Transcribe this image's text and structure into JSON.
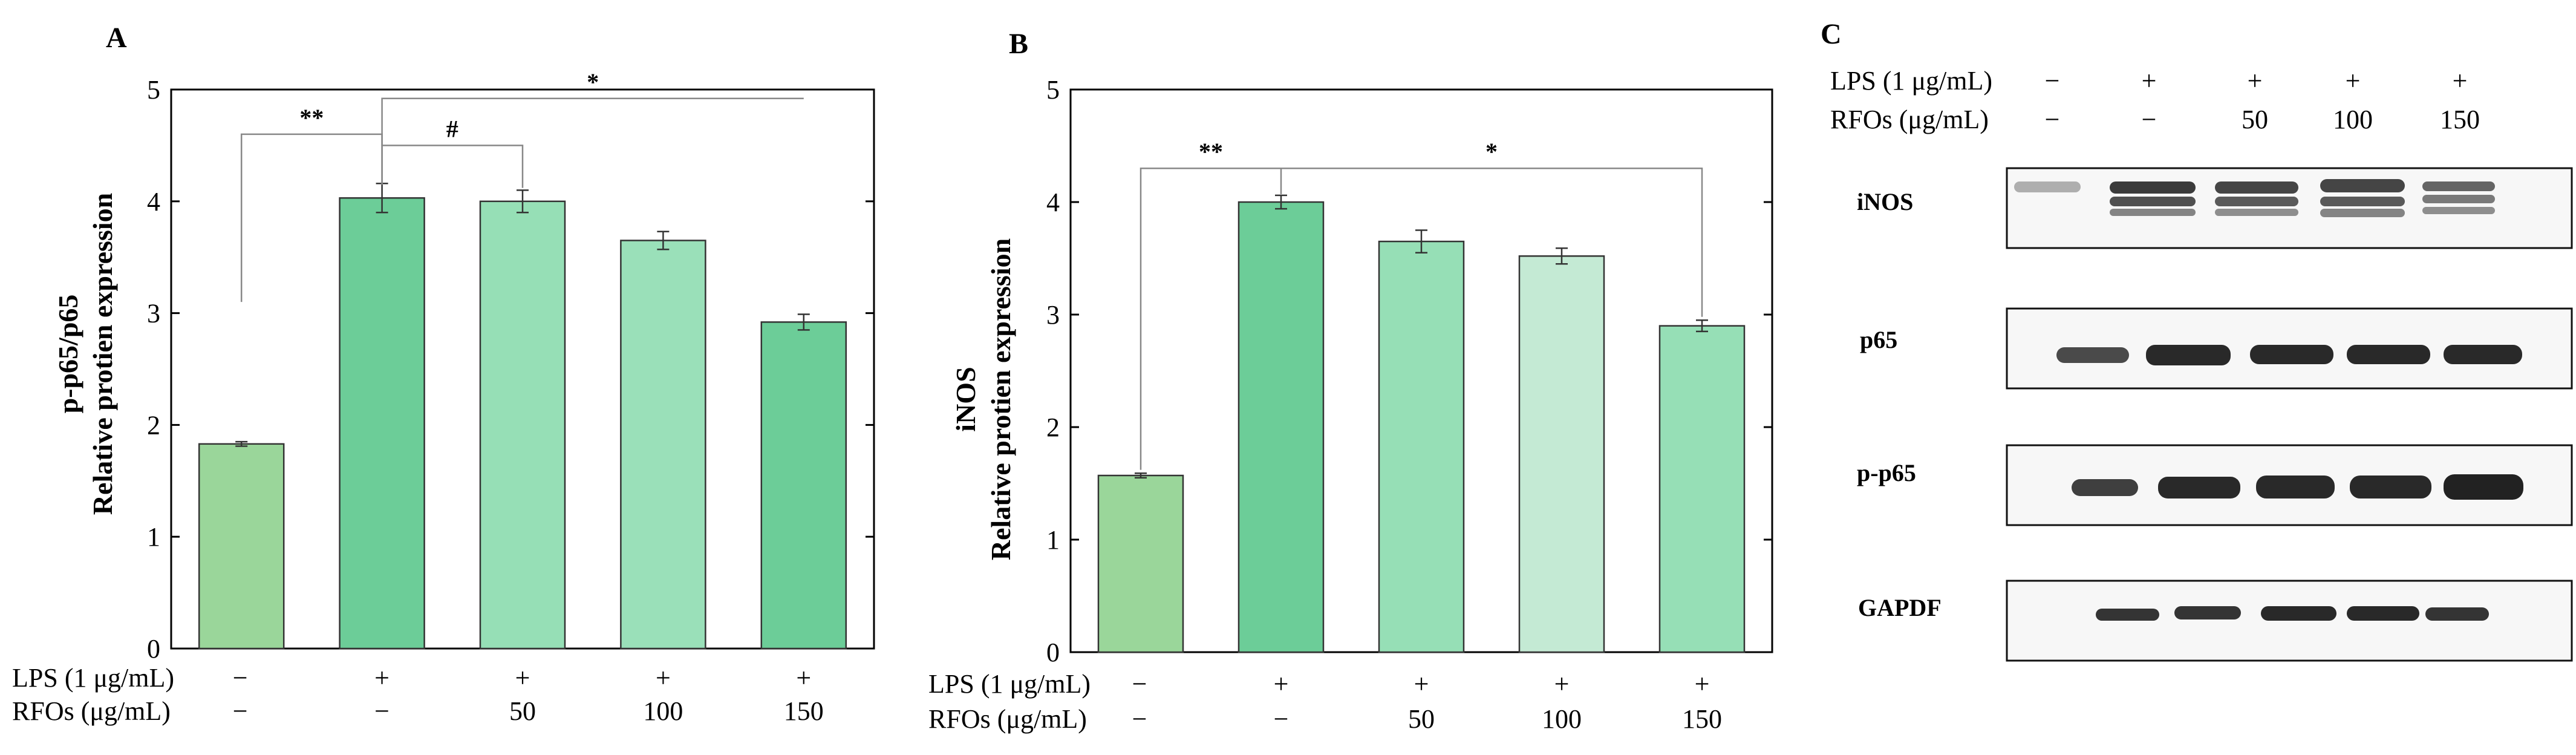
{
  "panels": [
    {
      "letter": "A",
      "chart_data": {
        "type": "bar",
        "title": "",
        "ylabel_line1": "p-p65/p65",
        "ylabel_line2": "Relative protien expression",
        "xlabel": "",
        "ylim": [
          0,
          5
        ],
        "yticks": [
          "0",
          "1",
          "2",
          "3",
          "4",
          "5"
        ],
        "treatment_rows": [
          {
            "label": "LPS (1 μg/mL)",
            "values": [
              "−",
              "+",
              "+",
              "+",
              "+"
            ]
          },
          {
            "label": "RFOs (μg/mL)",
            "values": [
              "−",
              "−",
              "50",
              "100",
              "150"
            ]
          }
        ],
        "values": [
          1.83,
          4.03,
          4.0,
          3.65,
          2.92
        ],
        "errors": [
          0.02,
          0.13,
          0.1,
          0.08,
          0.07
        ],
        "colors": [
          "#9ad69a",
          "#6ccd98",
          "#96dfb6",
          "#9ae0b9",
          "#6ccd98"
        ],
        "significance": [
          {
            "from": 0,
            "to": 1,
            "label": "**",
            "level": 4.6,
            "from_y": 3.1,
            "to_y": 4.15
          },
          {
            "from": 1,
            "to": 2,
            "label": "#",
            "level": 4.5,
            "from_y": 4.15,
            "to_y": 4.12
          },
          {
            "from": 1,
            "to": 4,
            "label": "*",
            "level": 4.92,
            "from_y": 4.5,
            "to_y": 4.92
          }
        ]
      }
    },
    {
      "letter": "B",
      "chart_data": {
        "type": "bar",
        "title": "",
        "ylabel_line1": "iNOS",
        "ylabel_line2": "Relative protien expression",
        "xlabel": "",
        "ylim": [
          0,
          5
        ],
        "yticks": [
          "0",
          "1",
          "2",
          "3",
          "4",
          "5"
        ],
        "treatment_rows": [
          {
            "label": "LPS (1 μg/mL)",
            "values": [
              "−",
              "+",
              "+",
              "+",
              "+"
            ]
          },
          {
            "label": "RFOs (μg/mL)",
            "values": [
              "−",
              "−",
              "50",
              "100",
              "150"
            ]
          }
        ],
        "values": [
          1.57,
          4.0,
          3.65,
          3.52,
          2.9
        ],
        "errors": [
          0.02,
          0.06,
          0.1,
          0.07,
          0.05
        ],
        "colors": [
          "#9ad69a",
          "#6ccd98",
          "#96dfb6",
          "#c4ead4",
          "#96dfb6"
        ],
        "significance": [
          {
            "from": 0,
            "to": 1,
            "label": "**",
            "level": 4.3,
            "from_y": 1.62,
            "to_y": 4.07
          },
          {
            "from": 1,
            "to": 4,
            "label": "*",
            "level": 4.3,
            "from_y": 4.3,
            "to_y": 2.98
          }
        ]
      }
    }
  ],
  "western_blot": {
    "letter": "C",
    "treatment_rows": [
      {
        "label": "LPS (1 μg/mL)",
        "values": [
          "−",
          "+",
          "+",
          "+",
          "+"
        ]
      },
      {
        "label": "RFOs (μg/mL)",
        "values": [
          "−",
          "−",
          "50",
          "100",
          "150"
        ]
      }
    ],
    "proteins": [
      "iNOS",
      "p65",
      "p-p65",
      "GAPDF"
    ]
  }
}
